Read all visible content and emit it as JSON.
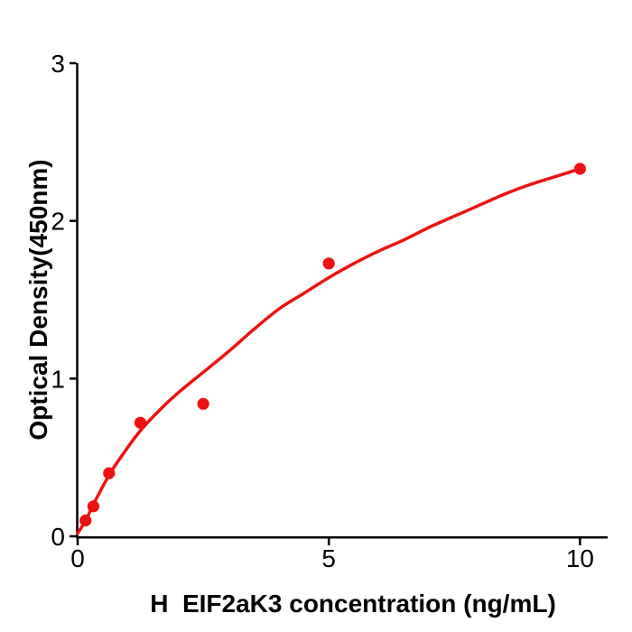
{
  "figure": {
    "background": "#ffffff",
    "accent_color": "#ee1111",
    "axis_color": "#000000",
    "text_color": "#000000"
  },
  "chart_data": {
    "type": "scatter",
    "title": "",
    "xlabel": "H  EIF2aK3 concentration (ng/mL)",
    "ylabel": "Optical Density(450nm)",
    "points": {
      "x": [
        0.156,
        0.3125,
        0.625,
        1.25,
        2.5,
        5,
        10
      ],
      "y": [
        0.1,
        0.19,
        0.4,
        0.72,
        0.84,
        1.73,
        2.33
      ]
    },
    "fit_curve": {
      "x": [
        0,
        0.16,
        0.31,
        0.63,
        0.9,
        1.25,
        1.6,
        2.0,
        2.5,
        3.0,
        3.5,
        4.0,
        4.5,
        5.0,
        5.5,
        6.0,
        6.5,
        7.0,
        7.5,
        8.0,
        8.5,
        9.0,
        9.5,
        10.0
      ],
      "y": [
        0.02,
        0.1,
        0.2,
        0.39,
        0.52,
        0.67,
        0.79,
        0.91,
        1.04,
        1.17,
        1.31,
        1.44,
        1.54,
        1.64,
        1.73,
        1.81,
        1.88,
        1.96,
        2.03,
        2.1,
        2.17,
        2.23,
        2.28,
        2.33
      ]
    },
    "xlim": [
      0,
      10.55
    ],
    "ylim": [
      0,
      3
    ],
    "x_ticks": [
      0,
      5,
      10
    ],
    "y_ticks": [
      0,
      1,
      2,
      3
    ],
    "grid": false,
    "legend": null,
    "marker_color": "#ee1111",
    "line_color": "#ee1111"
  }
}
